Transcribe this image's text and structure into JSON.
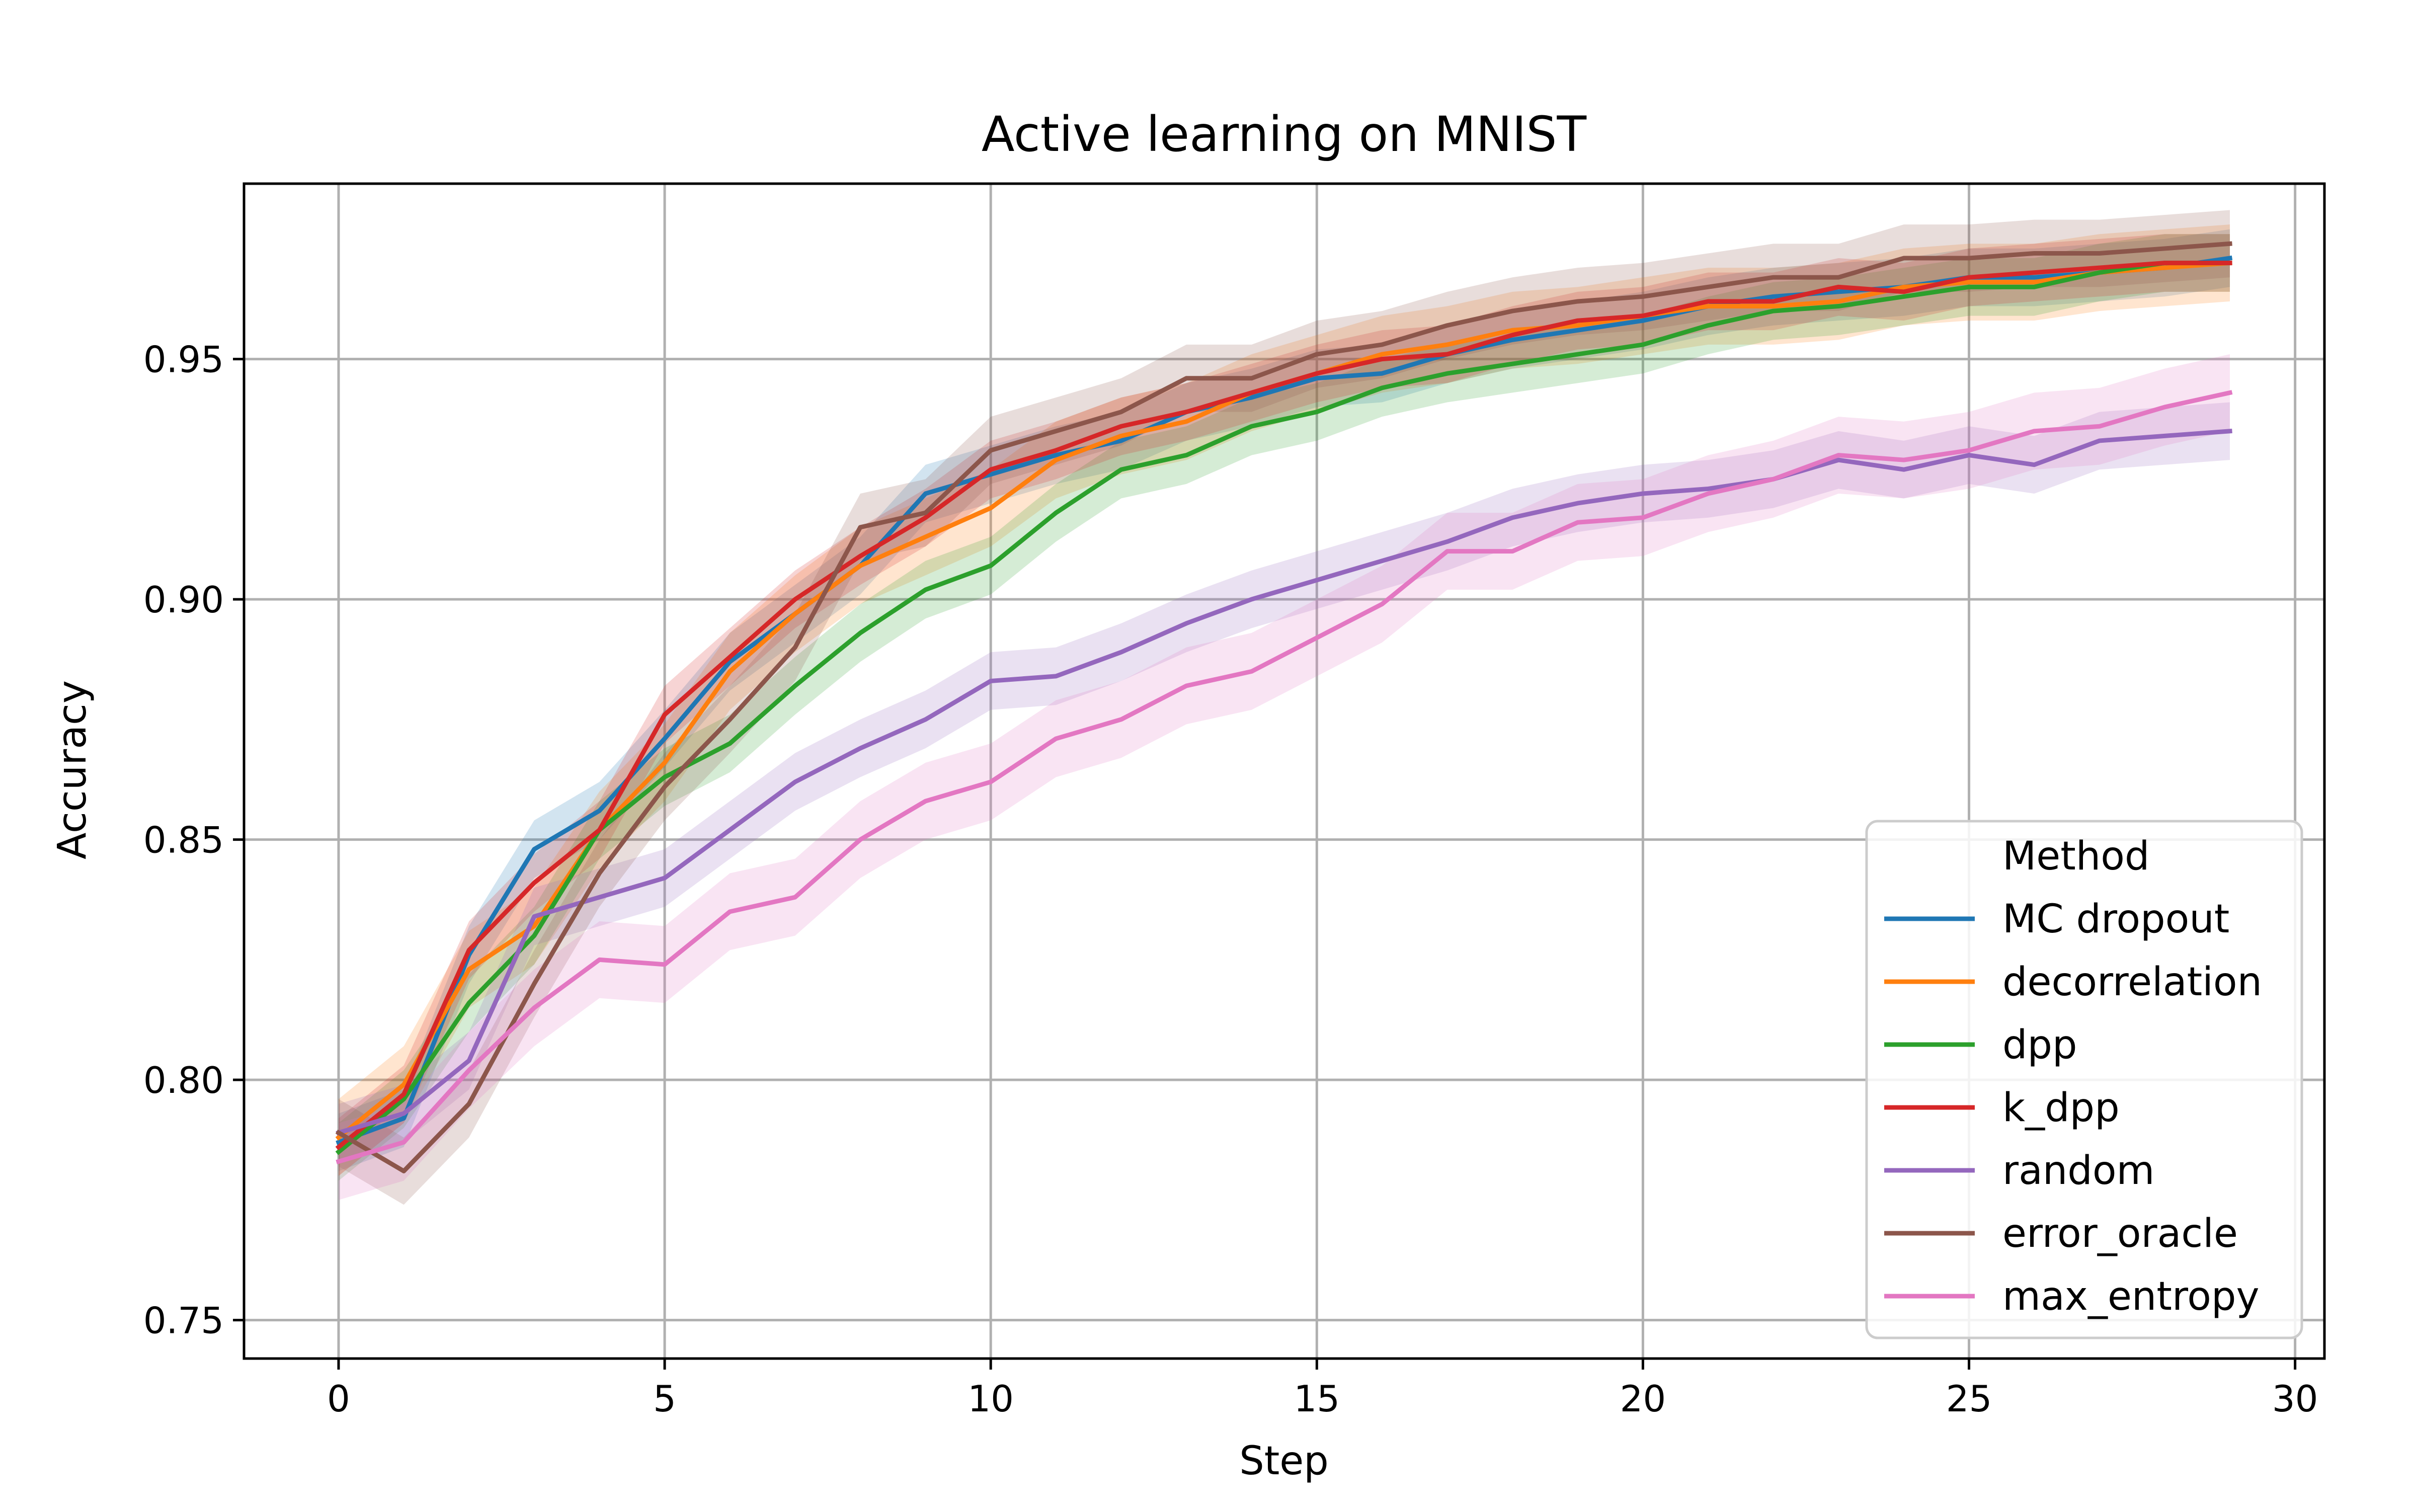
{
  "chart_data": {
    "type": "line",
    "title": "Active learning on MNIST",
    "xlabel": "Step",
    "ylabel": "Accuracy",
    "xlim": [
      -1.45,
      30.45
    ],
    "ylim": [
      0.742,
      0.9865
    ],
    "xticks": [
      0,
      5,
      10,
      15,
      20,
      25,
      30
    ],
    "xtick_labels": [
      "0",
      "5",
      "10",
      "15",
      "20",
      "25",
      "30"
    ],
    "yticks": [
      0.75,
      0.8,
      0.85,
      0.9,
      0.95
    ],
    "ytick_labels": [
      "0.75",
      "0.80",
      "0.85",
      "0.90",
      "0.95"
    ],
    "grid": true,
    "legend": {
      "title": "Method",
      "position": "lower-right"
    },
    "x": [
      0,
      1,
      2,
      3,
      4,
      5,
      6,
      7,
      8,
      9,
      10,
      11,
      12,
      13,
      14,
      15,
      16,
      17,
      18,
      19,
      20,
      21,
      22,
      23,
      24,
      25,
      26,
      27,
      28,
      29
    ],
    "series": [
      {
        "name": "MC dropout",
        "color": "#1f77b4",
        "values": [
          0.787,
          0.792,
          0.826,
          0.848,
          0.856,
          0.871,
          0.887,
          0.897,
          0.907,
          0.922,
          0.926,
          0.93,
          0.933,
          0.939,
          0.942,
          0.946,
          0.947,
          0.951,
          0.954,
          0.956,
          0.958,
          0.961,
          0.963,
          0.964,
          0.965,
          0.967,
          0.967,
          0.968,
          0.969,
          0.971
        ],
        "band": 0.006
      },
      {
        "name": "decorrelation",
        "color": "#ff7f0e",
        "values": [
          0.788,
          0.799,
          0.823,
          0.832,
          0.852,
          0.866,
          0.885,
          0.897,
          0.907,
          0.913,
          0.919,
          0.929,
          0.934,
          0.937,
          0.943,
          0.947,
          0.951,
          0.953,
          0.956,
          0.957,
          0.959,
          0.961,
          0.961,
          0.962,
          0.965,
          0.966,
          0.966,
          0.968,
          0.969,
          0.97
        ],
        "band": 0.008
      },
      {
        "name": "dpp",
        "color": "#2ca02c",
        "values": [
          0.785,
          0.796,
          0.816,
          0.83,
          0.852,
          0.863,
          0.87,
          0.882,
          0.893,
          0.902,
          0.907,
          0.918,
          0.927,
          0.93,
          0.936,
          0.939,
          0.944,
          0.947,
          0.949,
          0.951,
          0.953,
          0.957,
          0.96,
          0.961,
          0.963,
          0.965,
          0.965,
          0.968,
          0.97,
          0.97
        ],
        "band": 0.006
      },
      {
        "name": "k_dpp",
        "color": "#d62728",
        "values": [
          0.786,
          0.797,
          0.827,
          0.841,
          0.852,
          0.876,
          0.888,
          0.9,
          0.909,
          0.917,
          0.927,
          0.931,
          0.936,
          0.939,
          0.943,
          0.947,
          0.95,
          0.951,
          0.955,
          0.958,
          0.959,
          0.962,
          0.962,
          0.965,
          0.964,
          0.967,
          0.968,
          0.969,
          0.97,
          0.97
        ],
        "band": 0.006
      },
      {
        "name": "random",
        "color": "#9467bd",
        "values": [
          0.789,
          0.793,
          0.804,
          0.834,
          0.838,
          0.842,
          0.852,
          0.862,
          0.869,
          0.875,
          0.883,
          0.884,
          0.889,
          0.895,
          0.9,
          0.904,
          0.908,
          0.912,
          0.917,
          0.92,
          0.922,
          0.923,
          0.925,
          0.929,
          0.927,
          0.93,
          0.928,
          0.933,
          0.934,
          0.935
        ],
        "band": 0.006
      },
      {
        "name": "error_oracle",
        "color": "#8c564b",
        "values": [
          0.789,
          0.781,
          0.795,
          0.82,
          0.843,
          0.861,
          0.875,
          0.89,
          0.915,
          0.918,
          0.931,
          0.935,
          0.939,
          0.946,
          0.946,
          0.951,
          0.953,
          0.957,
          0.96,
          0.962,
          0.963,
          0.965,
          0.967,
          0.967,
          0.971,
          0.971,
          0.972,
          0.972,
          0.973,
          0.974
        ],
        "band": 0.007
      },
      {
        "name": "max_entropy",
        "color": "#e377c2",
        "values": [
          0.783,
          0.787,
          0.802,
          0.815,
          0.825,
          0.824,
          0.835,
          0.838,
          0.85,
          0.858,
          0.862,
          0.871,
          0.875,
          0.882,
          0.885,
          0.892,
          0.899,
          0.91,
          0.91,
          0.916,
          0.917,
          0.922,
          0.925,
          0.93,
          0.929,
          0.931,
          0.935,
          0.936,
          0.94,
          0.943
        ],
        "band": 0.008
      }
    ]
  }
}
